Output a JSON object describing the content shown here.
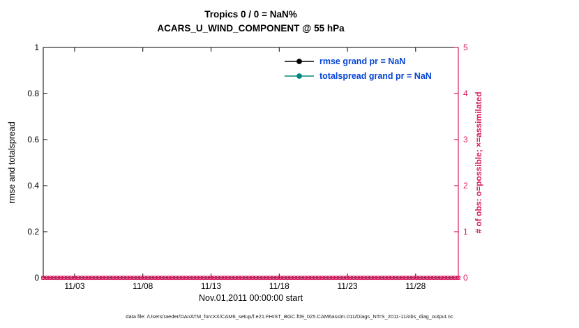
{
  "colors": {
    "axis": "#000000",
    "obs": "#d81b60",
    "rmse": "#000000",
    "totalspread": "#00897b",
    "legend_text": "#0645d6",
    "background": "#ffffff"
  },
  "chart_data": {
    "type": "line",
    "title": "Tropics 0 / 0 = NaN%",
    "subtitle": "ACARS_U_WIND_COMPONENT @ 55 hPa",
    "xlabel": "Nov.01,2011 00:00:00 start",
    "ylabel_left": "rmse and totalspread",
    "ylabel_right": "# of obs: o=possible; ×=assimilated",
    "ylim_left": [
      0,
      1
    ],
    "yticks_left": [
      0,
      0.2,
      0.4,
      0.6,
      0.8,
      1
    ],
    "ylim_right": [
      0,
      5
    ],
    "yticks_right": [
      0,
      1,
      2,
      3,
      4,
      5
    ],
    "xtick_labels": [
      "11/03",
      "11/08",
      "11/13",
      "11/18",
      "11/23",
      "11/28"
    ],
    "xtick_days": [
      3,
      8,
      13,
      18,
      23,
      28
    ],
    "xlim_days": [
      0.7,
      31.13
    ],
    "grid": false,
    "legend_position": "top-right-inside",
    "n_obs_points": 120,
    "series": [
      {
        "name": "rmse",
        "grand_pr": "NaN",
        "axis": "left",
        "color": "#000000",
        "marker": "filled-circle",
        "values": []
      },
      {
        "name": "totalspread",
        "grand_pr": "NaN",
        "axis": "left",
        "color": "#00897b",
        "marker": "filled-circle",
        "values": []
      },
      {
        "name": "possible obs (o)",
        "axis": "right",
        "color": "#d81b60",
        "marker": "o",
        "constant_value": 0
      },
      {
        "name": "assimilated obs (×)",
        "axis": "right",
        "color": "#d81b60",
        "marker": "x",
        "constant_value": 0
      }
    ],
    "legend": [
      {
        "label": "rmse grand pr = NaN",
        "line_color": "#000000"
      },
      {
        "label": "totalspread grand pr = NaN",
        "line_color": "#00897b"
      }
    ]
  },
  "caption": "data file: /Users/raeder/DAI/ATM_forcXX/CAM6_setup/f.e21.FHIST_BGC.f09_025.CAM6assim.011/Diags_NTrS_2011-11/obs_diag_output.nc"
}
